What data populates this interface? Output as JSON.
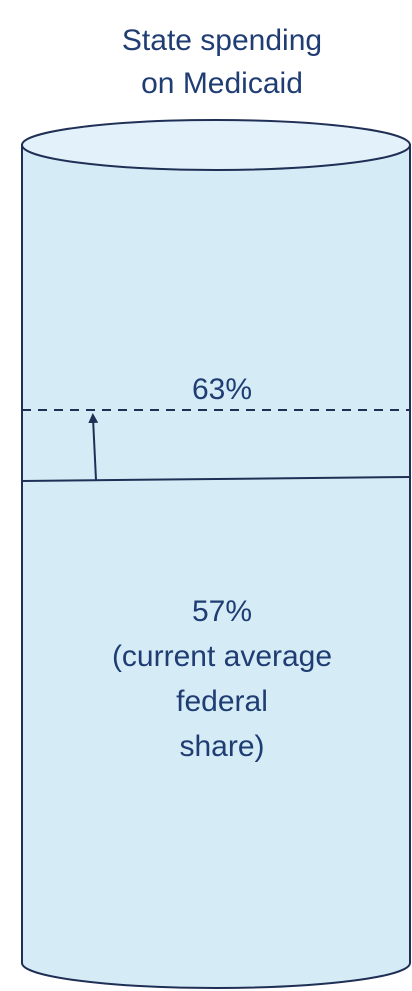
{
  "title": [
    "State spending",
    "on Medicaid"
  ],
  "upper_label": "63%",
  "lower_label": [
    "57%",
    "(current average",
    "federal",
    "share)"
  ]
}
